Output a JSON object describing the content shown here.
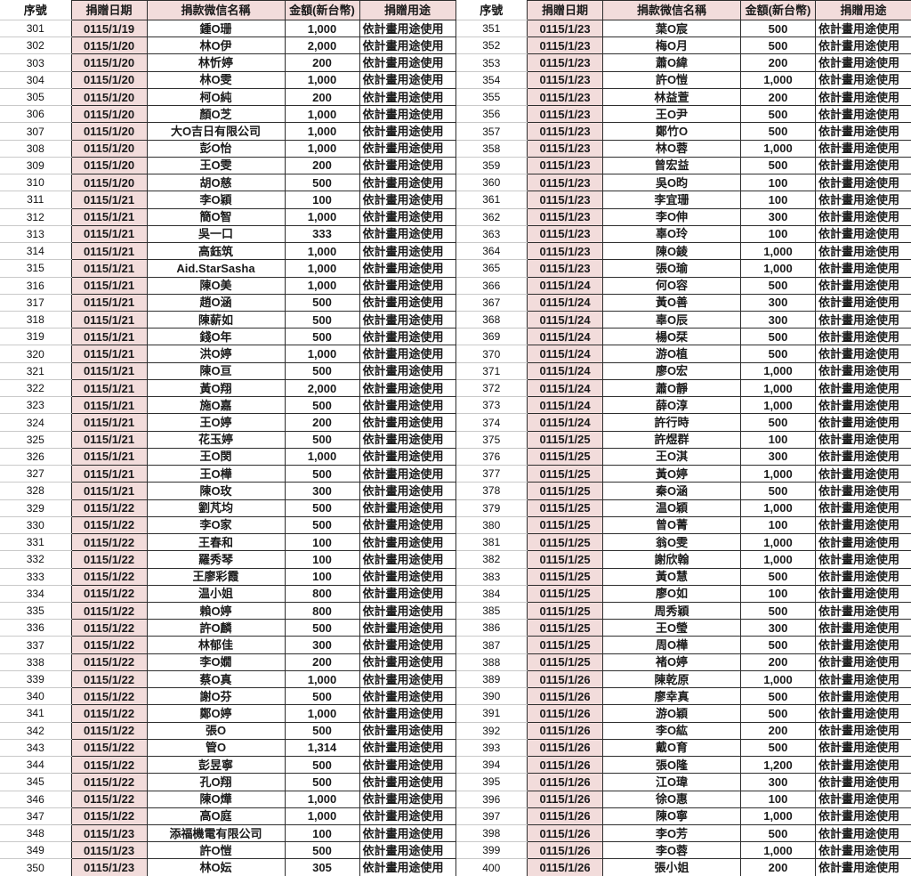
{
  "document": {
    "description": "donation-ledger-two-panel-table",
    "purpose_text": "依計畫用途使用"
  },
  "colors": {
    "header_bg": "#f2dcdb",
    "date_cell_bg": "#f2dcdb",
    "ruled_border": "#2e2e2e",
    "faint_gridline": "#c9c9c9",
    "text": "#1a1a1a"
  },
  "tables": [
    {
      "name": "donation-table-left",
      "headers": [
        "序號",
        "捐贈日期",
        "捐款微信名稱",
        "金額(新台幣)",
        "捐贈用途"
      ],
      "rows": [
        [
          "301",
          "0115/1/19",
          "鍾O珊",
          "1,000",
          "依計畫用途使用"
        ],
        [
          "302",
          "0115/1/20",
          "林O伊",
          "2,000",
          "依計畫用途使用"
        ],
        [
          "303",
          "0115/1/20",
          "林忻婷",
          "200",
          "依計畫用途使用"
        ],
        [
          "304",
          "0115/1/20",
          "林O雯",
          "1,000",
          "依計畫用途使用"
        ],
        [
          "305",
          "0115/1/20",
          "柯O純",
          "200",
          "依計畫用途使用"
        ],
        [
          "306",
          "0115/1/20",
          "顏O芝",
          "1,000",
          "依計畫用途使用"
        ],
        [
          "307",
          "0115/1/20",
          "大O吉日有限公司",
          "1,000",
          "依計畫用途使用"
        ],
        [
          "308",
          "0115/1/20",
          "彭O怡",
          "1,000",
          "依計畫用途使用"
        ],
        [
          "309",
          "0115/1/20",
          "王O雯",
          "200",
          "依計畫用途使用"
        ],
        [
          "310",
          "0115/1/20",
          "胡O慈",
          "500",
          "依計畫用途使用"
        ],
        [
          "311",
          "0115/1/21",
          "李O穎",
          "100",
          "依計畫用途使用"
        ],
        [
          "312",
          "0115/1/21",
          "簡O智",
          "1,000",
          "依計畫用途使用"
        ],
        [
          "313",
          "0115/1/21",
          "吳一口",
          "333",
          "依計畫用途使用"
        ],
        [
          "314",
          "0115/1/21",
          "高鈺筑",
          "1,000",
          "依計畫用途使用"
        ],
        [
          "315",
          "0115/1/21",
          "Aid.StarSasha",
          "1,000",
          "依計畫用途使用"
        ],
        [
          "316",
          "0115/1/21",
          "陳O美",
          "1,000",
          "依計畫用途使用"
        ],
        [
          "317",
          "0115/1/21",
          "趙O涵",
          "500",
          "依計畫用途使用"
        ],
        [
          "318",
          "0115/1/21",
          "陳薪如",
          "500",
          "依計畫用途使用"
        ],
        [
          "319",
          "0115/1/21",
          "錢O年",
          "500",
          "依計畫用途使用"
        ],
        [
          "320",
          "0115/1/21",
          "洪O婷",
          "1,000",
          "依計畫用途使用"
        ],
        [
          "321",
          "0115/1/21",
          "陳O亘",
          "500",
          "依計畫用途使用"
        ],
        [
          "322",
          "0115/1/21",
          "黃O翔",
          "2,000",
          "依計畫用途使用"
        ],
        [
          "323",
          "0115/1/21",
          "施O嘉",
          "500",
          "依計畫用途使用"
        ],
        [
          "324",
          "0115/1/21",
          "王O婷",
          "200",
          "依計畫用途使用"
        ],
        [
          "325",
          "0115/1/21",
          "花玉婷",
          "500",
          "依計畫用途使用"
        ],
        [
          "326",
          "0115/1/21",
          "王O閔",
          "1,000",
          "依計畫用途使用"
        ],
        [
          "327",
          "0115/1/21",
          "王O樺",
          "500",
          "依計畫用途使用"
        ],
        [
          "328",
          "0115/1/21",
          "陳O玫",
          "300",
          "依計畫用途使用"
        ],
        [
          "329",
          "0115/1/22",
          "劉芃均",
          "500",
          "依計畫用途使用"
        ],
        [
          "330",
          "0115/1/22",
          "李O家",
          "500",
          "依計畫用途使用"
        ],
        [
          "331",
          "0115/1/22",
          "王春和",
          "100",
          "依計畫用途使用"
        ],
        [
          "332",
          "0115/1/22",
          "羅秀琴",
          "100",
          "依計畫用途使用"
        ],
        [
          "333",
          "0115/1/22",
          "王廖彩霞",
          "100",
          "依計畫用途使用"
        ],
        [
          "334",
          "0115/1/22",
          "温小姐",
          "800",
          "依計畫用途使用"
        ],
        [
          "335",
          "0115/1/22",
          "賴O婷",
          "800",
          "依計畫用途使用"
        ],
        [
          "336",
          "0115/1/22",
          "許O麟",
          "500",
          "依計畫用途使用"
        ],
        [
          "337",
          "0115/1/22",
          "林郁佳",
          "300",
          "依計畫用途使用"
        ],
        [
          "338",
          "0115/1/22",
          "李O嫺",
          "200",
          "依計畫用途使用"
        ],
        [
          "339",
          "0115/1/22",
          "蔡O真",
          "1,000",
          "依計畫用途使用"
        ],
        [
          "340",
          "0115/1/22",
          "謝O芬",
          "500",
          "依計畫用途使用"
        ],
        [
          "341",
          "0115/1/22",
          "鄭O婷",
          "1,000",
          "依計畫用途使用"
        ],
        [
          "342",
          "0115/1/22",
          "張O",
          "500",
          "依計畫用途使用"
        ],
        [
          "343",
          "0115/1/22",
          "管O",
          "1,314",
          "依計畫用途使用"
        ],
        [
          "344",
          "0115/1/22",
          "彭昱寧",
          "500",
          "依計畫用途使用"
        ],
        [
          "345",
          "0115/1/22",
          "孔O翔",
          "500",
          "依計畫用途使用"
        ],
        [
          "346",
          "0115/1/22",
          "陳O燁",
          "1,000",
          "依計畫用途使用"
        ],
        [
          "347",
          "0115/1/22",
          "高O庭",
          "1,000",
          "依計畫用途使用"
        ],
        [
          "348",
          "0115/1/23",
          "添福機電有限公司",
          "100",
          "依計畫用途使用"
        ],
        [
          "349",
          "0115/1/23",
          "許O愷",
          "500",
          "依計畫用途使用"
        ],
        [
          "350",
          "0115/1/23",
          "林O妘",
          "305",
          "依計畫用途使用"
        ]
      ]
    },
    {
      "name": "donation-table-right",
      "headers": [
        "序號",
        "捐贈日期",
        "捐款微信名稱",
        "金額(新台幣)",
        "捐贈用途"
      ],
      "rows": [
        [
          "351",
          "0115/1/23",
          "葉O宸",
          "500",
          "依計畫用途使用"
        ],
        [
          "352",
          "0115/1/23",
          "梅O月",
          "500",
          "依計畫用途使用"
        ],
        [
          "353",
          "0115/1/23",
          "蕭O緯",
          "200",
          "依計畫用途使用"
        ],
        [
          "354",
          "0115/1/23",
          "許O愷",
          "1,000",
          "依計畫用途使用"
        ],
        [
          "355",
          "0115/1/23",
          "林益萱",
          "200",
          "依計畫用途使用"
        ],
        [
          "356",
          "0115/1/23",
          "王O尹",
          "500",
          "依計畫用途使用"
        ],
        [
          "357",
          "0115/1/23",
          "鄭竹O",
          "500",
          "依計畫用途使用"
        ],
        [
          "358",
          "0115/1/23",
          "林O蓉",
          "1,000",
          "依計畫用途使用"
        ],
        [
          "359",
          "0115/1/23",
          "曾宏益",
          "500",
          "依計畫用途使用"
        ],
        [
          "360",
          "0115/1/23",
          "吳O昀",
          "100",
          "依計畫用途使用"
        ],
        [
          "361",
          "0115/1/23",
          "李宜珊",
          "100",
          "依計畫用途使用"
        ],
        [
          "362",
          "0115/1/23",
          "李O伸",
          "300",
          "依計畫用途使用"
        ],
        [
          "363",
          "0115/1/23",
          "辜O玲",
          "100",
          "依計畫用途使用"
        ],
        [
          "364",
          "0115/1/23",
          "陳O錂",
          "1,000",
          "依計畫用途使用"
        ],
        [
          "365",
          "0115/1/23",
          "張O瑜",
          "1,000",
          "依計畫用途使用"
        ],
        [
          "366",
          "0115/1/24",
          "何O容",
          "500",
          "依計畫用途使用"
        ],
        [
          "367",
          "0115/1/24",
          "黃O善",
          "300",
          "依計畫用途使用"
        ],
        [
          "368",
          "0115/1/24",
          "辜O辰",
          "300",
          "依計畫用途使用"
        ],
        [
          "369",
          "0115/1/24",
          "楊O栞",
          "500",
          "依計畫用途使用"
        ],
        [
          "370",
          "0115/1/24",
          "游O植",
          "500",
          "依計畫用途使用"
        ],
        [
          "371",
          "0115/1/24",
          "廖O宏",
          "1,000",
          "依計畫用途使用"
        ],
        [
          "372",
          "0115/1/24",
          "蕭O靜",
          "1,000",
          "依計畫用途使用"
        ],
        [
          "373",
          "0115/1/24",
          "薛O淳",
          "1,000",
          "依計畫用途使用"
        ],
        [
          "374",
          "0115/1/24",
          "許行時",
          "500",
          "依計畫用途使用"
        ],
        [
          "375",
          "0115/1/25",
          "許煜群",
          "100",
          "依計畫用途使用"
        ],
        [
          "376",
          "0115/1/25",
          "王O淇",
          "300",
          "依計畫用途使用"
        ],
        [
          "377",
          "0115/1/25",
          "黃O婷",
          "1,000",
          "依計畫用途使用"
        ],
        [
          "378",
          "0115/1/25",
          "秦O涵",
          "500",
          "依計畫用途使用"
        ],
        [
          "379",
          "0115/1/25",
          "温O穎",
          "1,000",
          "依計畫用途使用"
        ],
        [
          "380",
          "0115/1/25",
          "曾O菁",
          "100",
          "依計畫用途使用"
        ],
        [
          "381",
          "0115/1/25",
          "翁O雯",
          "1,000",
          "依計畫用途使用"
        ],
        [
          "382",
          "0115/1/25",
          "謝欣翰",
          "1,000",
          "依計畫用途使用"
        ],
        [
          "383",
          "0115/1/25",
          "黃O慧",
          "500",
          "依計畫用途使用"
        ],
        [
          "384",
          "0115/1/25",
          "廖O如",
          "100",
          "依計畫用途使用"
        ],
        [
          "385",
          "0115/1/25",
          "周秀穎",
          "500",
          "依計畫用途使用"
        ],
        [
          "386",
          "0115/1/25",
          "王O瑩",
          "300",
          "依計畫用途使用"
        ],
        [
          "387",
          "0115/1/25",
          "周O樺",
          "500",
          "依計畫用途使用"
        ],
        [
          "388",
          "0115/1/25",
          "褚O婷",
          "200",
          "依計畫用途使用"
        ],
        [
          "389",
          "0115/1/26",
          "陳乾原",
          "1,000",
          "依計畫用途使用"
        ],
        [
          "390",
          "0115/1/26",
          "廖幸真",
          "500",
          "依計畫用途使用"
        ],
        [
          "391",
          "0115/1/26",
          "游O穎",
          "500",
          "依計畫用途使用"
        ],
        [
          "392",
          "0115/1/26",
          "李O紘",
          "200",
          "依計畫用途使用"
        ],
        [
          "393",
          "0115/1/26",
          "戴O育",
          "500",
          "依計畫用途使用"
        ],
        [
          "394",
          "0115/1/26",
          "張O隆",
          "1,200",
          "依計畫用途使用"
        ],
        [
          "395",
          "0115/1/26",
          "江O瑋",
          "300",
          "依計畫用途使用"
        ],
        [
          "396",
          "0115/1/26",
          "徐O惠",
          "100",
          "依計畫用途使用"
        ],
        [
          "397",
          "0115/1/26",
          "陳O寧",
          "1,000",
          "依計畫用途使用"
        ],
        [
          "398",
          "0115/1/26",
          "李O芳",
          "500",
          "依計畫用途使用"
        ],
        [
          "399",
          "0115/1/26",
          "李O蓉",
          "1,000",
          "依計畫用途使用"
        ],
        [
          "400",
          "0115/1/26",
          "張小姐",
          "200",
          "依計畫用途使用"
        ]
      ]
    }
  ]
}
